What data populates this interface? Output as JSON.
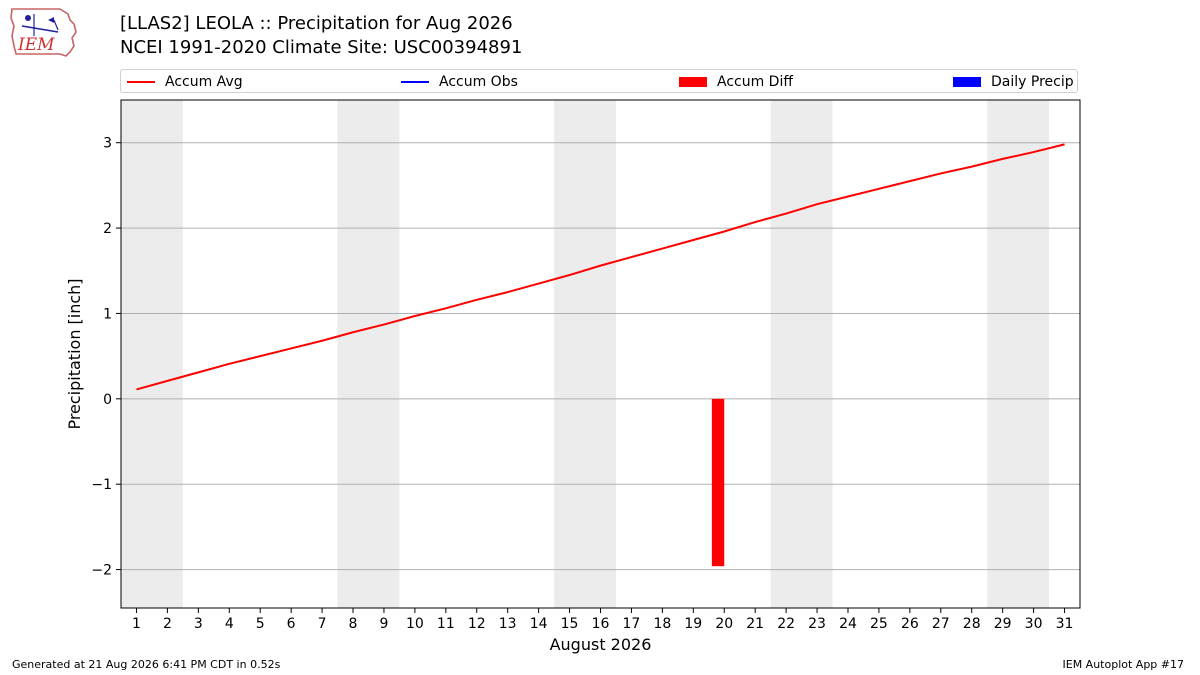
{
  "header": {
    "title_line1": "[LLAS2] LEOLA :: Precipitation for Aug 2026",
    "title_line2": "NCEI 1991-2020 Climate Site: USC00394891",
    "logo_text": "IEM"
  },
  "legend": {
    "items": [
      {
        "label": "Accum Avg",
        "kind": "line",
        "color": "#ff0000"
      },
      {
        "label": "Accum Obs",
        "kind": "line",
        "color": "#0000ff"
      },
      {
        "label": "Accum Diff",
        "kind": "bar",
        "color": "#ff0000"
      },
      {
        "label": "Daily Precip",
        "kind": "bar",
        "color": "#0000ff"
      }
    ]
  },
  "footer": {
    "left": "Generated at 21 Aug 2026 6:41 PM CDT in 0.52s",
    "right": "IEM Autoplot App #17"
  },
  "chart_data": {
    "type": "line",
    "xlabel": "August 2026",
    "ylabel": "Precipitation [inch]",
    "xlim": [
      0.5,
      31.5
    ],
    "ylim": [
      -2.45,
      3.5
    ],
    "yticks": [
      -2,
      -1,
      0,
      1,
      2,
      3
    ],
    "ytick_labels": [
      "−2",
      "−1",
      "0",
      "1",
      "2",
      "3"
    ],
    "x": [
      1,
      2,
      3,
      4,
      5,
      6,
      7,
      8,
      9,
      10,
      11,
      12,
      13,
      14,
      15,
      16,
      17,
      18,
      19,
      20,
      21,
      22,
      23,
      24,
      25,
      26,
      27,
      28,
      29,
      30,
      31
    ],
    "xtick_labels": [
      "1",
      "2",
      "3",
      "4",
      "5",
      "6",
      "7",
      "8",
      "9",
      "10",
      "11",
      "12",
      "13",
      "14",
      "15",
      "16",
      "17",
      "18",
      "19",
      "20",
      "21",
      "22",
      "23",
      "24",
      "25",
      "26",
      "27",
      "28",
      "29",
      "30",
      "31"
    ],
    "grid": "horizontal",
    "weekend_shading": [
      [
        1,
        2
      ],
      [
        8,
        9
      ],
      [
        15,
        16
      ],
      [
        22,
        23
      ],
      [
        29,
        30
      ]
    ],
    "series": [
      {
        "name": "Accum Avg",
        "kind": "line",
        "color": "#ff0000",
        "values": [
          0.11,
          0.21,
          0.31,
          0.41,
          0.5,
          0.59,
          0.68,
          0.78,
          0.87,
          0.97,
          1.06,
          1.16,
          1.25,
          1.35,
          1.45,
          1.56,
          1.66,
          1.76,
          1.86,
          1.96,
          2.07,
          2.17,
          2.28,
          2.37,
          2.46,
          2.55,
          2.64,
          2.72,
          2.81,
          2.89,
          2.98
        ]
      },
      {
        "name": "Accum Diff",
        "kind": "bar",
        "color": "#ff0000",
        "points": [
          {
            "x": 19.8,
            "y": -1.96
          }
        ]
      }
    ]
  }
}
